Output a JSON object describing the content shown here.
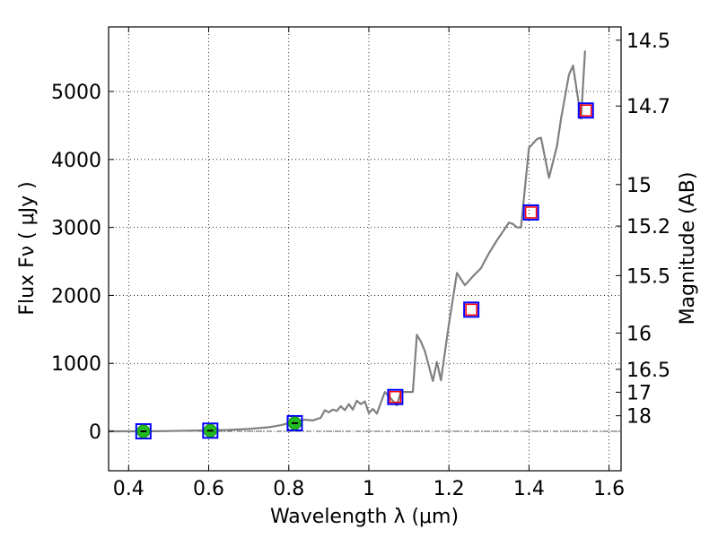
{
  "chart_data": {
    "type": "scatter",
    "xlabel": "Wavelength  λ (μm)",
    "ylabel": "Flux  Fν  ( μJy )",
    "ylabel_right": "Magnitude (AB)",
    "xlim": [
      0.35,
      1.63
    ],
    "ylim": [
      -580,
      5950
    ],
    "grid": true,
    "xticks": [
      {
        "value": 0.4,
        "label": "0.4"
      },
      {
        "value": 0.6,
        "label": "0.6"
      },
      {
        "value": 0.8,
        "label": "0.8"
      },
      {
        "value": 1.0,
        "label": "1"
      },
      {
        "value": 1.2,
        "label": "1.2"
      },
      {
        "value": 1.4,
        "label": "1.4"
      },
      {
        "value": 1.6,
        "label": "1.6"
      }
    ],
    "yticks": [
      {
        "value": 0,
        "label": "0"
      },
      {
        "value": 1000,
        "label": "1000"
      },
      {
        "value": 2000,
        "label": "2000"
      },
      {
        "value": 3000,
        "label": "3000"
      },
      {
        "value": 4000,
        "label": "4000"
      },
      {
        "value": 5000,
        "label": "5000"
      }
    ],
    "mag_ticks": [
      {
        "mag": 14.5,
        "label": "14.5"
      },
      {
        "mag": 14.7,
        "label": "14.7"
      },
      {
        "mag": 15,
        "label": "15"
      },
      {
        "mag": 15.2,
        "label": "15.2"
      },
      {
        "mag": 15.5,
        "label": "15.5"
      },
      {
        "mag": 16,
        "label": "16"
      },
      {
        "mag": 16.5,
        "label": "16.5"
      },
      {
        "mag": 17,
        "label": "17"
      },
      {
        "mag": 18,
        "label": "18"
      }
    ],
    "colors": {
      "model": "#808080",
      "observed": "#22bb22",
      "box": "#0000ff",
      "predicted": "#ff0000",
      "zero_line": "#555555"
    },
    "model_sed": {
      "x": [
        0.35,
        0.4,
        0.45,
        0.5,
        0.55,
        0.6,
        0.65,
        0.7,
        0.75,
        0.78,
        0.8,
        0.82,
        0.84,
        0.86,
        0.88,
        0.89,
        0.9,
        0.91,
        0.92,
        0.93,
        0.94,
        0.95,
        0.96,
        0.97,
        0.98,
        0.99,
        1.0,
        1.01,
        1.02,
        1.04,
        1.06,
        1.07,
        1.08,
        1.1,
        1.11,
        1.12,
        1.13,
        1.14,
        1.16,
        1.17,
        1.18,
        1.2,
        1.22,
        1.24,
        1.26,
        1.28,
        1.3,
        1.32,
        1.35,
        1.36,
        1.37,
        1.38,
        1.4,
        1.42,
        1.43,
        1.45,
        1.47,
        1.48,
        1.5,
        1.51,
        1.53,
        1.54
      ],
      "y": [
        0,
        0,
        0,
        5,
        10,
        15,
        20,
        35,
        60,
        90,
        120,
        150,
        170,
        160,
        200,
        310,
        280,
        320,
        300,
        370,
        310,
        400,
        320,
        450,
        400,
        440,
        270,
        330,
        260,
        580,
        450,
        380,
        580,
        580,
        580,
        1420,
        1320,
        1180,
        740,
        1020,
        750,
        1580,
        2330,
        2150,
        2280,
        2400,
        2620,
        2810,
        3070,
        3050,
        3000,
        3000,
        4170,
        4300,
        4320,
        3730,
        4200,
        4600,
        5250,
        5380,
        4600,
        5600
      ]
    },
    "observed_points": [
      {
        "x": 0.437,
        "y": 0
      },
      {
        "x": 0.604,
        "y": 10
      },
      {
        "x": 0.815,
        "y": 120
      }
    ],
    "predicted_points": [
      {
        "x": 1.066,
        "y": 505
      },
      {
        "x": 1.256,
        "y": 1790
      },
      {
        "x": 1.405,
        "y": 3220
      },
      {
        "x": 1.542,
        "y": 4720
      }
    ]
  }
}
